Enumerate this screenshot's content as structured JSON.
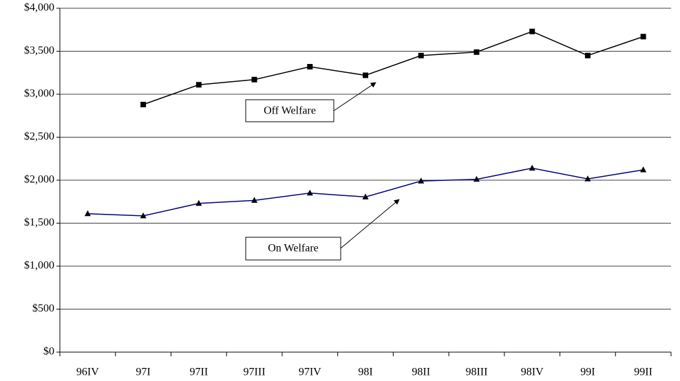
{
  "chart_data": {
    "type": "line",
    "categories": [
      "96IV",
      "97I",
      "97II",
      "97III",
      "97IV",
      "98I",
      "98II",
      "98III",
      "98IV",
      "99I",
      "99II"
    ],
    "series": [
      {
        "name": "Off Welfare",
        "color": "#000000",
        "marker": "square",
        "values": [
          null,
          2880,
          3110,
          3170,
          3320,
          3220,
          3450,
          3490,
          3730,
          3450,
          3670
        ]
      },
      {
        "name": "On Welfare",
        "color": "#000080",
        "marker": "triangle",
        "values": [
          1610,
          1585,
          1730,
          1765,
          1850,
          1805,
          1990,
          2010,
          2140,
          2015,
          2120
        ]
      }
    ],
    "ylim": [
      0,
      4000
    ],
    "yticks": [
      {
        "value": 0,
        "label": "$0"
      },
      {
        "value": 500,
        "label": "$500"
      },
      {
        "value": 1000,
        "label": "$1,000"
      },
      {
        "value": 1500,
        "label": "$1,500"
      },
      {
        "value": 2000,
        "label": "$2,000"
      },
      {
        "value": 2500,
        "label": "$2,500"
      },
      {
        "value": 3000,
        "label": "$3,000"
      },
      {
        "value": 3500,
        "label": "$3,500"
      },
      {
        "value": 4000,
        "label": "$4,000"
      }
    ],
    "grid": true,
    "annotations": [
      "Off Welfare",
      "On Welfare"
    ]
  }
}
